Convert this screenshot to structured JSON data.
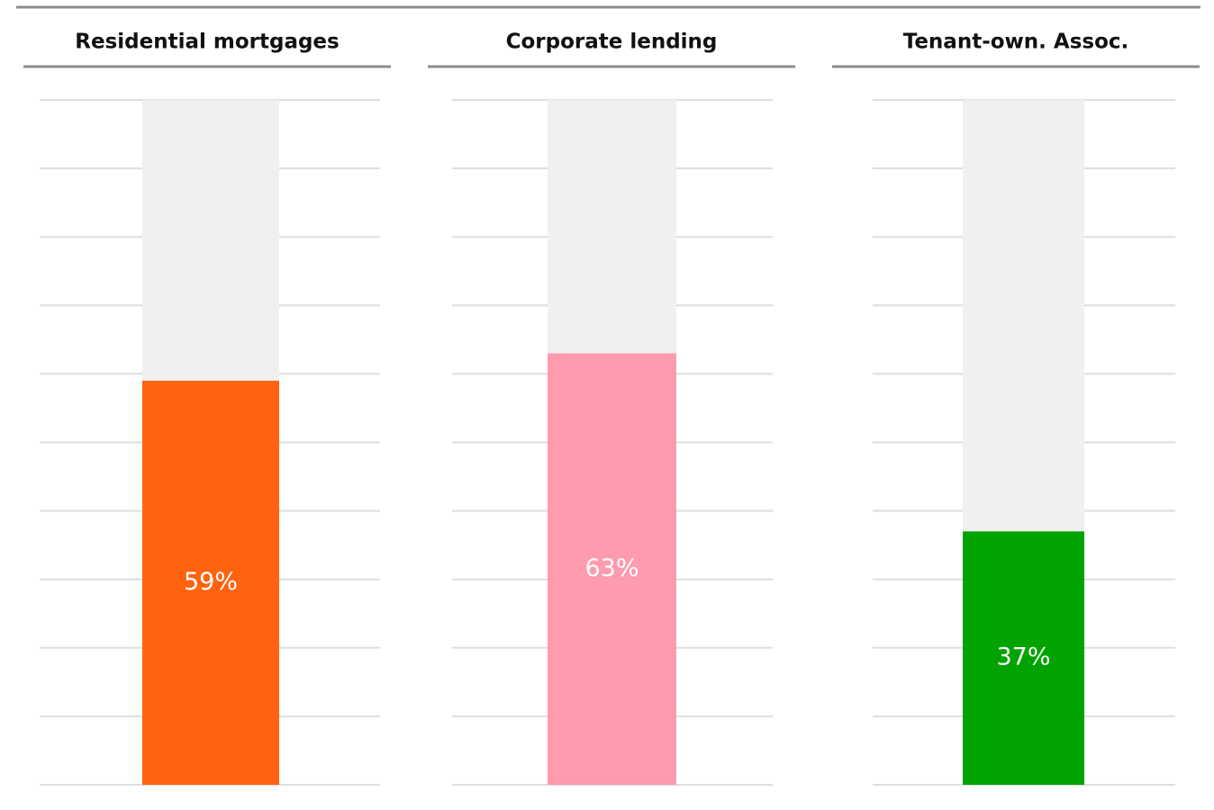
{
  "chart_data": [
    {
      "type": "bar",
      "title": "Residential mortgages",
      "values": [
        59
      ],
      "value_labels": [
        "59%"
      ],
      "color": "#ff6310",
      "ylim": [
        0,
        100
      ],
      "yticks": [
        0,
        10,
        20,
        30,
        40,
        50,
        60,
        70,
        80,
        90,
        100
      ],
      "grid": true
    },
    {
      "type": "bar",
      "title": "Corporate lending",
      "values": [
        63
      ],
      "value_labels": [
        "63%"
      ],
      "color": "#ff9bae",
      "ylim": [
        0,
        100
      ],
      "yticks": [
        0,
        10,
        20,
        30,
        40,
        50,
        60,
        70,
        80,
        90,
        100
      ],
      "grid": true
    },
    {
      "type": "bar",
      "title": "Tenant-own. Assoc.",
      "values": [
        37
      ],
      "value_labels": [
        "37%"
      ],
      "color": "#00a300",
      "ylim": [
        0,
        100
      ],
      "yticks": [
        0,
        10,
        20,
        30,
        40,
        50,
        60,
        70,
        80,
        90,
        100
      ],
      "grid": true
    }
  ]
}
